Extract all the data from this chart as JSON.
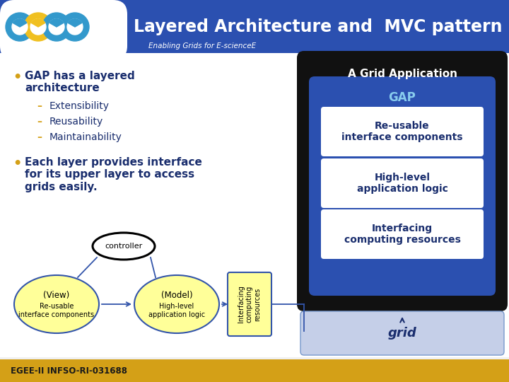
{
  "title": "Layered Architecture and  MVC pattern",
  "subtitle": "Enabling Grids for E-scienceE",
  "bg_color": "#f0f0f0",
  "header_bg": "#2b50b0",
  "header_text_color": "#ffffff",
  "bullet_color": "#d4a017",
  "dash_color": "#d4a017",
  "text_color": "#1a2e6e",
  "bullet1_title": "GAP has a layered\narchitecture",
  "bullet1_subs": [
    "Extensibility",
    "Reusability",
    "Maintainability"
  ],
  "bullet2": "Each layer provides interface\nfor its upper layer to access\ngrids easily.",
  "right_layers": [
    "Re-usable\ninterface components",
    "High-level\napplication logic",
    "Interfacing\ncomputing resources"
  ],
  "gap_label": "GAP",
  "grid_app_label": "A Grid Application",
  "grid_label": "grid",
  "grid_box_bg": "#c5cfe8",
  "mvc_ellipse_color": "#ffff99",
  "mvc_ellipse_outline": "#3355aa",
  "controller_label": "controller",
  "footer_text": "EGEE-II INFSO-RI-031688",
  "footer_bg": "#d4a017",
  "logo_blue": "#3399cc",
  "logo_yellow": "#f0c020",
  "logo_white": "#ffffff"
}
